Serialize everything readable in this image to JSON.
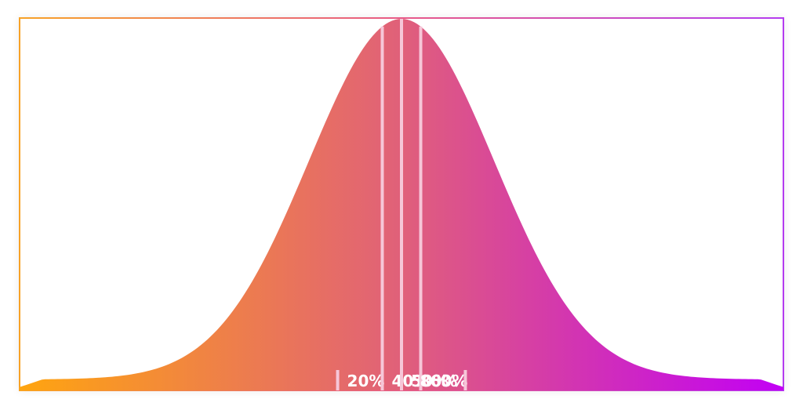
{
  "chart_data": {
    "type": "area",
    "distribution": "normal",
    "percentile_markers": [
      {
        "label": "20%",
        "percentile": 20
      },
      {
        "label": "40%",
        "percentile": 40
      },
      {
        "label": "50%",
        "percentile": 50
      },
      {
        "label": "60%",
        "percentile": 60
      },
      {
        "label": "80%",
        "percentile": 80
      }
    ],
    "colors": {
      "gradient_start": "#ffa50f",
      "gradient_mid": "#e0607a",
      "gradient_end": "#c200f5",
      "marker_line": "#f6c6d8",
      "label": "#ffffff"
    }
  }
}
